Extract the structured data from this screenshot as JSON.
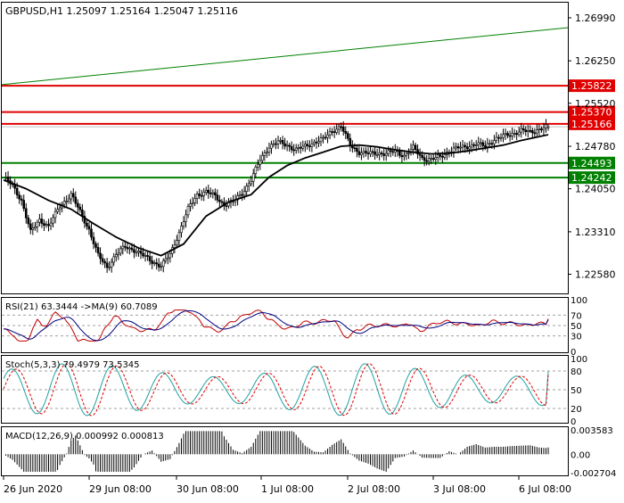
{
  "main": {
    "header": "GBPUSD,H1  1.25097 1.25164 1.25047 1.25116",
    "y_ticks": [
      {
        "label": "1.26990",
        "v": 1.2699
      },
      {
        "label": "1.26250",
        "v": 1.2625
      },
      {
        "label": "1.25520",
        "v": 1.2552
      },
      {
        "label": "1.24780",
        "v": 1.2478
      },
      {
        "label": "1.24050",
        "v": 1.2405
      },
      {
        "label": "1.23310",
        "v": 1.2331
      },
      {
        "label": "1.22580",
        "v": 1.2258
      }
    ],
    "levels": [
      {
        "label": "1.25822",
        "v": 1.25822,
        "color": "#e00000"
      },
      {
        "label": "1.25370",
        "v": 1.2537,
        "color": "#e00000"
      },
      {
        "label": "1.25166",
        "v": 1.25166,
        "color": "#e00000"
      },
      {
        "label": "1.24493",
        "v": 1.24493,
        "color": "#008000"
      },
      {
        "label": "1.24242",
        "v": 1.24242,
        "color": "#008000"
      }
    ],
    "current_price": 1.25116,
    "trendline": {
      "from": 1.2584,
      "to": 1.2682,
      "color": "#008000"
    }
  },
  "rsi": {
    "header": "RSI(21) 63.3444  ->MA(9) 60.7089",
    "y_ticks": [
      "100",
      "70",
      "50",
      "30",
      "0"
    ]
  },
  "stoch": {
    "header": "Stoch(5,3,3) 79.4979 73.5345",
    "y_ticks": [
      "100",
      "80",
      "50",
      "20",
      "0"
    ]
  },
  "macd": {
    "header": "MACD(12,26,9) 0.000992 0.000813",
    "y_ticks": [
      "0.003583",
      "0.00",
      "-0.002704"
    ]
  },
  "x_labels": [
    "26 Jun 2020",
    "29 Jun 08:00",
    "30 Jun 08:00",
    "1 Jul 08:00",
    "2 Jul 08:00",
    "3 Jul 08:00",
    "6 Jul 08:00"
  ],
  "chart_data": {
    "type": "candlestick",
    "symbol": "GBPUSD",
    "timeframe": "H1",
    "ohlc_last": {
      "open": 1.25097,
      "high": 1.25164,
      "low": 1.25047,
      "close": 1.25116
    },
    "ylim": [
      1.2225,
      1.2725
    ],
    "close_path": [
      [
        0,
        1.2425
      ],
      [
        4,
        1.241
      ],
      [
        8,
        1.2385
      ],
      [
        12,
        1.233
      ],
      [
        16,
        1.2352
      ],
      [
        20,
        1.234
      ],
      [
        25,
        1.2375
      ],
      [
        30,
        1.2395
      ],
      [
        34,
        1.2365
      ],
      [
        38,
        1.2335
      ],
      [
        42,
        1.229
      ],
      [
        46,
        1.227
      ],
      [
        50,
        1.2292
      ],
      [
        54,
        1.2305
      ],
      [
        58,
        1.23
      ],
      [
        62,
        1.229
      ],
      [
        66,
        1.228
      ],
      [
        70,
        1.2272
      ],
      [
        74,
        1.2292
      ],
      [
        78,
        1.233
      ],
      [
        82,
        1.237
      ],
      [
        86,
        1.2395
      ],
      [
        90,
        1.24
      ],
      [
        94,
        1.2392
      ],
      [
        98,
        1.2378
      ],
      [
        102,
        1.2382
      ],
      [
        106,
        1.2398
      ],
      [
        110,
        1.242
      ],
      [
        114,
        1.2455
      ],
      [
        118,
        1.2478
      ],
      [
        122,
        1.2485
      ],
      [
        126,
        1.248
      ],
      [
        130,
        1.2472
      ],
      [
        134,
        1.2478
      ],
      [
        138,
        1.2485
      ],
      [
        142,
        1.249
      ],
      [
        146,
        1.2505
      ],
      [
        150,
        1.2512
      ],
      [
        154,
        1.248
      ],
      [
        158,
        1.2468
      ],
      [
        162,
        1.2465
      ],
      [
        166,
        1.2467
      ],
      [
        170,
        1.2465
      ],
      [
        174,
        1.247
      ],
      [
        178,
        1.2462
      ],
      [
        182,
        1.2475
      ],
      [
        186,
        1.2458
      ],
      [
        190,
        1.2455
      ],
      [
        194,
        1.246
      ],
      [
        198,
        1.247
      ],
      [
        202,
        1.2475
      ],
      [
        206,
        1.2478
      ],
      [
        210,
        1.2482
      ],
      [
        214,
        1.2478
      ],
      [
        218,
        1.249
      ],
      [
        222,
        1.2495
      ],
      [
        226,
        1.25
      ],
      [
        230,
        1.2505
      ],
      [
        234,
        1.2502
      ],
      [
        238,
        1.2508
      ],
      [
        242,
        1.25116
      ]
    ],
    "ma_path": [
      [
        0,
        1.242
      ],
      [
        10,
        1.2405
      ],
      [
        20,
        1.2385
      ],
      [
        30,
        1.237
      ],
      [
        40,
        1.2345
      ],
      [
        50,
        1.2322
      ],
      [
        60,
        1.2303
      ],
      [
        70,
        1.229
      ],
      [
        80,
        1.231
      ],
      [
        90,
        1.2358
      ],
      [
        100,
        1.2382
      ],
      [
        110,
        1.2395
      ],
      [
        118,
        1.2425
      ],
      [
        126,
        1.2445
      ],
      [
        134,
        1.2458
      ],
      [
        142,
        1.2468
      ],
      [
        150,
        1.2478
      ],
      [
        158,
        1.248
      ],
      [
        166,
        1.2477
      ],
      [
        174,
        1.2472
      ],
      [
        182,
        1.2468
      ],
      [
        190,
        1.2465
      ],
      [
        198,
        1.2466
      ],
      [
        206,
        1.247
      ],
      [
        214,
        1.2475
      ],
      [
        222,
        1.248
      ],
      [
        230,
        1.2488
      ],
      [
        236,
        1.2493
      ],
      [
        242,
        1.2498
      ]
    ],
    "rsi_value": 63.3444,
    "rsi_ma": 60.7089,
    "stoch_k": 79.4979,
    "stoch_d": 73.5345,
    "macd_main": 0.000992,
    "macd_signal": 0.000813
  }
}
